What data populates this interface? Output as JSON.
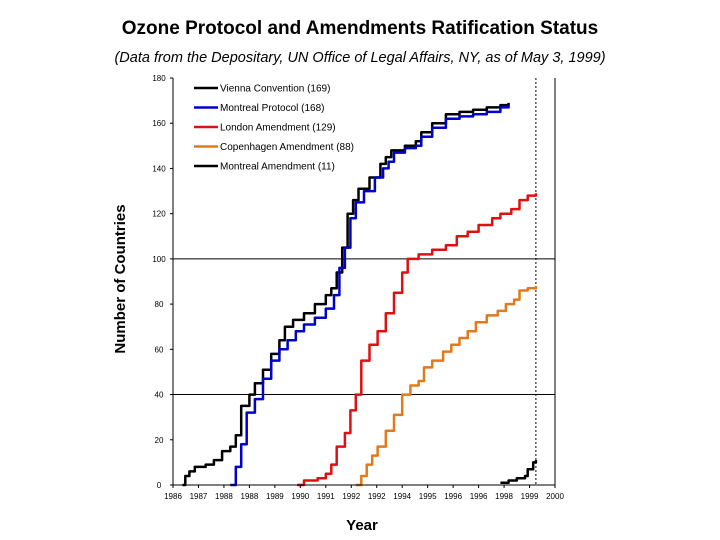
{
  "chart_data": {
    "type": "line",
    "title": "Ozone Protocol and Amendments Ratification Status",
    "subtitle": "(Data from the Depositary, UN Office of Legal Affairs, NY, as of May 3, 1999)",
    "xlabel": "Year",
    "ylabel": "Number of Countries",
    "xlim": [
      1986,
      2000
    ],
    "ylim": [
      0,
      180
    ],
    "y_ticks": [
      "0",
      "20",
      "40",
      "60",
      "80",
      "100",
      "120",
      "140",
      "160",
      "180"
    ],
    "x_tick_labels": [
      "1986",
      "1987",
      "1988",
      "1988",
      "1989",
      "1990",
      "1991",
      "1992",
      "1992",
      "1994",
      "1995",
      "1996",
      "1996",
      "1998",
      "1999",
      "2000"
    ],
    "reference_lines": [
      40,
      100
    ],
    "marker_x": 1999.3,
    "legend_position": "top-left",
    "series": [
      {
        "name": "Vienna Convention (169)",
        "color": "#000000",
        "points": [
          [
            1986.35,
            0
          ],
          [
            1986.45,
            4
          ],
          [
            1986.6,
            6
          ],
          [
            1986.8,
            8
          ],
          [
            1987.2,
            9
          ],
          [
            1987.5,
            11
          ],
          [
            1987.8,
            15
          ],
          [
            1988.1,
            17
          ],
          [
            1988.3,
            22
          ],
          [
            1988.5,
            35
          ],
          [
            1988.8,
            40
          ],
          [
            1989.0,
            45
          ],
          [
            1989.3,
            51
          ],
          [
            1989.6,
            58
          ],
          [
            1989.9,
            64
          ],
          [
            1990.1,
            70
          ],
          [
            1990.4,
            73
          ],
          [
            1990.8,
            76
          ],
          [
            1991.2,
            80
          ],
          [
            1991.6,
            84
          ],
          [
            1991.8,
            87
          ],
          [
            1992.0,
            94
          ],
          [
            1992.2,
            105
          ],
          [
            1992.4,
            120
          ],
          [
            1992.6,
            126
          ],
          [
            1992.8,
            131
          ],
          [
            1993.2,
            136
          ],
          [
            1993.6,
            142
          ],
          [
            1993.8,
            145
          ],
          [
            1994.0,
            148
          ],
          [
            1994.5,
            150
          ],
          [
            1994.9,
            152
          ],
          [
            1995.1,
            156
          ],
          [
            1995.5,
            160
          ],
          [
            1996.0,
            164
          ],
          [
            1996.5,
            165
          ],
          [
            1997.0,
            166
          ],
          [
            1997.5,
            167
          ],
          [
            1998.0,
            168
          ],
          [
            1998.3,
            169
          ]
        ]
      },
      {
        "name": "Montreal Protocol (168)",
        "color": "#0000cc",
        "points": [
          [
            1988.1,
            0
          ],
          [
            1988.3,
            8
          ],
          [
            1988.5,
            18
          ],
          [
            1988.7,
            32
          ],
          [
            1989.0,
            38
          ],
          [
            1989.3,
            47
          ],
          [
            1989.6,
            55
          ],
          [
            1989.9,
            60
          ],
          [
            1990.2,
            64
          ],
          [
            1990.5,
            68
          ],
          [
            1990.8,
            71
          ],
          [
            1991.2,
            74
          ],
          [
            1991.6,
            78
          ],
          [
            1991.9,
            84
          ],
          [
            1992.1,
            96
          ],
          [
            1992.3,
            105
          ],
          [
            1992.5,
            118
          ],
          [
            1992.7,
            125
          ],
          [
            1993.0,
            130
          ],
          [
            1993.4,
            136
          ],
          [
            1993.7,
            140
          ],
          [
            1993.9,
            143
          ],
          [
            1994.1,
            147
          ],
          [
            1994.5,
            149
          ],
          [
            1994.9,
            150
          ],
          [
            1995.1,
            154
          ],
          [
            1995.5,
            158
          ],
          [
            1996.0,
            162
          ],
          [
            1996.5,
            163
          ],
          [
            1997.0,
            164
          ],
          [
            1997.5,
            165
          ],
          [
            1998.0,
            167
          ],
          [
            1998.3,
            168
          ]
        ]
      },
      {
        "name": "London Amendment (129)",
        "color": "#dd1111",
        "points": [
          [
            1990.55,
            0
          ],
          [
            1990.8,
            2
          ],
          [
            1991.3,
            3
          ],
          [
            1991.6,
            5
          ],
          [
            1991.8,
            9
          ],
          [
            1992.0,
            17
          ],
          [
            1992.3,
            23
          ],
          [
            1992.5,
            33
          ],
          [
            1992.7,
            40
          ],
          [
            1992.9,
            55
          ],
          [
            1993.2,
            62
          ],
          [
            1993.5,
            68
          ],
          [
            1993.8,
            76
          ],
          [
            1994.1,
            85
          ],
          [
            1994.4,
            94
          ],
          [
            1994.6,
            100
          ],
          [
            1995.0,
            102
          ],
          [
            1995.5,
            104
          ],
          [
            1996.0,
            106
          ],
          [
            1996.4,
            110
          ],
          [
            1996.8,
            112
          ],
          [
            1997.2,
            115
          ],
          [
            1997.7,
            118
          ],
          [
            1998.0,
            120
          ],
          [
            1998.4,
            122
          ],
          [
            1998.7,
            126
          ],
          [
            1999.0,
            128
          ],
          [
            1999.3,
            129
          ]
        ]
      },
      {
        "name": "Copenhagen Amendment (88)",
        "color": "#e07a1a",
        "points": [
          [
            1992.7,
            0
          ],
          [
            1992.9,
            4
          ],
          [
            1993.1,
            9
          ],
          [
            1993.3,
            13
          ],
          [
            1993.5,
            17
          ],
          [
            1993.8,
            24
          ],
          [
            1994.1,
            31
          ],
          [
            1994.4,
            40
          ],
          [
            1994.7,
            44
          ],
          [
            1995.0,
            46
          ],
          [
            1995.2,
            52
          ],
          [
            1995.5,
            55
          ],
          [
            1995.9,
            59
          ],
          [
            1996.2,
            62
          ],
          [
            1996.5,
            65
          ],
          [
            1996.8,
            68
          ],
          [
            1997.1,
            72
          ],
          [
            1997.5,
            75
          ],
          [
            1997.9,
            77
          ],
          [
            1998.2,
            80
          ],
          [
            1998.5,
            82
          ],
          [
            1998.7,
            86
          ],
          [
            1999.0,
            87
          ],
          [
            1999.3,
            88
          ]
        ]
      },
      {
        "name": "Montreal Amendment (11)",
        "color": "#000000",
        "points": [
          [
            1998.0,
            1
          ],
          [
            1998.3,
            2
          ],
          [
            1998.6,
            3
          ],
          [
            1998.9,
            4
          ],
          [
            1999.0,
            7
          ],
          [
            1999.2,
            10
          ],
          [
            1999.3,
            11
          ]
        ]
      }
    ]
  }
}
